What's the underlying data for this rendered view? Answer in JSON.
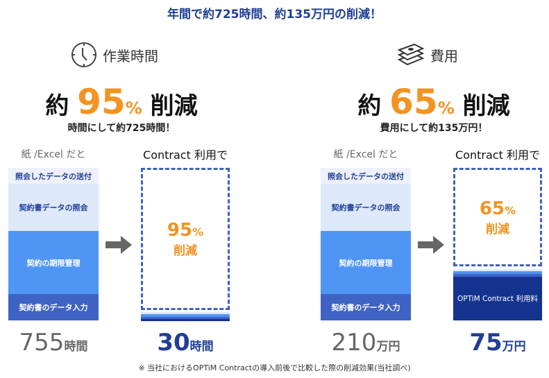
{
  "headline": "年間で約725時間、約135万円の削減！",
  "time": {
    "icon": "clock-icon",
    "title": "作業時間",
    "prefix": "約",
    "percent": "95",
    "pct_sign": "%",
    "reduce": "削減",
    "sub": "時間にして約725時間！",
    "before_label": "紙 /Excel だと",
    "after_label": "Contract 利用で",
    "segments": [
      "照会したデータの送付",
      "契約書データの照会",
      "契約の期限管理",
      "契約書のデータ入力"
    ],
    "box_percent": "95",
    "box_pct_sign": "%",
    "box_reduce": "削減",
    "before_total": "755",
    "before_unit": "時間",
    "after_total": "30",
    "after_unit": "時間"
  },
  "cost": {
    "icon": "money-stack-icon",
    "title": "費用",
    "prefix": "約",
    "percent": "65",
    "pct_sign": "%",
    "reduce": "削減",
    "sub": "費用にして約135万円！",
    "before_label": "紙 /Excel だと",
    "after_label": "Contract 利用で",
    "segments": [
      "照会したデータの送付",
      "契約書データの照会",
      "契約の期限管理",
      "契約書のデータ入力"
    ],
    "box_percent": "65",
    "box_pct_sign": "%",
    "box_reduce": "削減",
    "fee_label": "OPTiM Contract 利用料",
    "before_total": "210",
    "before_unit": "万円",
    "after_total": "75",
    "after_unit": "万円"
  },
  "colors": {
    "navy": "#1f3f96",
    "orange": "#f39321",
    "seg1": "#eef0fb",
    "seg2": "#dde9fb",
    "seg3": "#4f95f3",
    "seg4": "#3e63c4",
    "dark": "#13338f"
  },
  "footnote": "※ 当社におけるOPTiM Contractの導入前後で比較した際の削減効果(当社調べ)"
}
